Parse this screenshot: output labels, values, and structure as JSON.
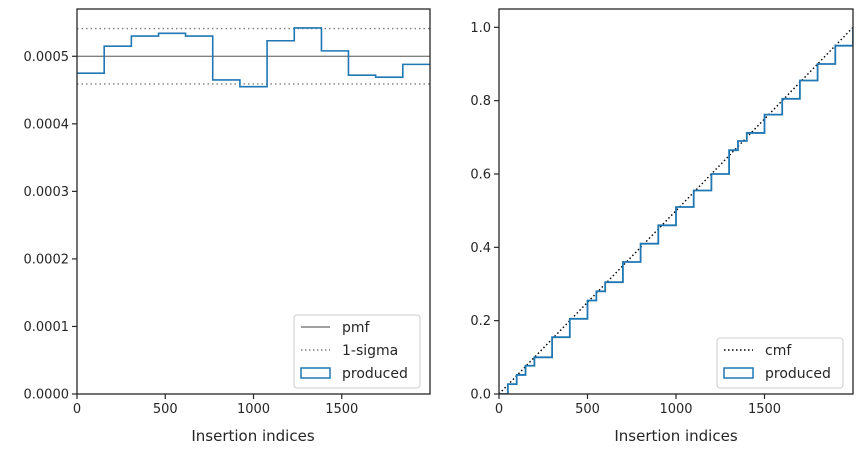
{
  "chart_data": [
    {
      "type": "line",
      "xlabel": "Insertion indices",
      "ylabel": "",
      "xlim": [
        0,
        2000
      ],
      "ylim": [
        0,
        0.00057
      ],
      "x_ticks": [
        0,
        500,
        1000,
        1500
      ],
      "y_ticks": [
        0.0,
        0.0001,
        0.0002,
        0.0003,
        0.0004,
        0.0005
      ],
      "y_tick_labels": [
        "0.0000",
        "0.0001",
        "0.0002",
        "0.0003",
        "0.0004",
        "0.0005"
      ],
      "x_tick_labels": [
        "0",
        "500",
        "1000",
        "1500"
      ],
      "legend_position": "lower-right",
      "series": [
        {
          "name": "pmf",
          "style": "solid",
          "color": "#808080",
          "y_constant": 0.0005
        },
        {
          "name": "1-sigma",
          "style": "dotted",
          "color": "#808080",
          "y_constants": [
            0.000541,
            0.000459
          ]
        },
        {
          "name": "produced",
          "style": "step",
          "color": "#1f77b4",
          "bin_edges": [
            0,
            154,
            308,
            462,
            615,
            769,
            923,
            1077,
            1231,
            1385,
            1538,
            1692,
            1846,
            2000
          ],
          "values": [
            0.000475,
            0.000515,
            0.00053,
            0.000534,
            0.00053,
            0.000465,
            0.000455,
            0.000523,
            0.000542,
            0.000508,
            0.000472,
            0.000469,
            0.000488
          ]
        }
      ]
    },
    {
      "type": "line",
      "xlabel": "Insertion indices",
      "ylabel": "",
      "xlim": [
        0,
        2000
      ],
      "ylim": [
        0,
        1.05
      ],
      "x_ticks": [
        0,
        500,
        1000,
        1500
      ],
      "x_tick_labels": [
        "0",
        "500",
        "1000",
        "1500"
      ],
      "y_ticks": [
        0.0,
        0.2,
        0.4,
        0.6,
        0.8,
        1.0
      ],
      "y_tick_labels": [
        "0.0",
        "0.2",
        "0.4",
        "0.6",
        "0.8",
        "1.0"
      ],
      "legend_position": "lower-right",
      "series": [
        {
          "name": "cmf",
          "style": "dotted",
          "color": "#000000",
          "x": [
            0,
            2000
          ],
          "y": [
            0,
            1.0
          ]
        },
        {
          "name": "produced",
          "style": "step",
          "color": "#1f77b4",
          "x": [
            0,
            50,
            100,
            150,
            200,
            300,
            400,
            500,
            550,
            600,
            700,
            800,
            900,
            1000,
            1100,
            1200,
            1300,
            1350,
            1400,
            1500,
            1600,
            1700,
            1800,
            1900,
            2000
          ],
          "y": [
            0.0,
            0.027,
            0.052,
            0.077,
            0.1,
            0.155,
            0.205,
            0.255,
            0.28,
            0.305,
            0.36,
            0.41,
            0.46,
            0.51,
            0.555,
            0.6,
            0.665,
            0.69,
            0.712,
            0.762,
            0.805,
            0.855,
            0.9,
            0.95,
            1.0
          ]
        }
      ]
    }
  ]
}
